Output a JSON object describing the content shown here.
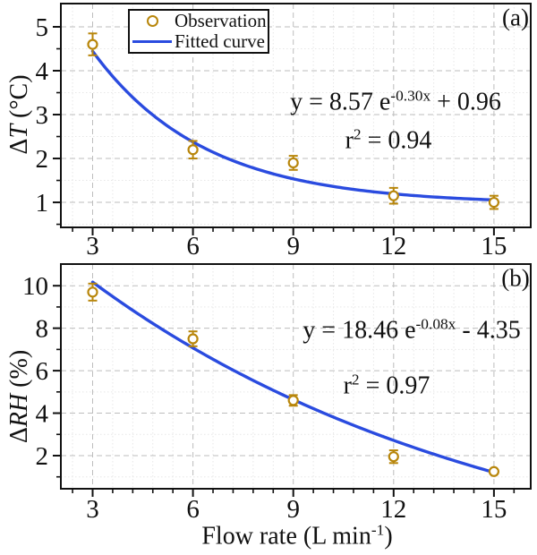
{
  "figure": {
    "xlabel": {
      "prefix": "Flow rate (L min",
      "sup": "-1",
      "suffix": ")"
    }
  },
  "colors": {
    "observation": "#b8860b",
    "fitted_curve": "#2a4bdf",
    "grid_major": "#bdbdbd",
    "grid_minor": "#e7e7e7",
    "axis": "#111111",
    "text": "#111111"
  },
  "chart_data": [
    {
      "type": "scatter",
      "panel_label": "(a)",
      "xlabel_shared": "Flow rate (L min-1)",
      "ylabel": {
        "prefix": "Δ",
        "italic": "T",
        "suffix": " (°C)"
      },
      "x_ticks": [
        3,
        6,
        9,
        12,
        15
      ],
      "y_ticks": [
        1,
        2,
        3,
        4,
        5
      ],
      "x_minor_step": 0.6,
      "y_minor_step": 0.5,
      "xlim": [
        2.05,
        16.1
      ],
      "ylim": [
        0.43,
        5.53
      ],
      "grid": "major-dashed plus minor-dotted",
      "series": [
        {
          "name": "Observation",
          "style": "open-circle",
          "x": [
            3,
            6,
            9,
            12,
            15
          ],
          "y": [
            4.6,
            2.2,
            1.9,
            1.15,
            1.0
          ],
          "yerr": [
            0.25,
            0.2,
            0.16,
            0.18,
            0.15
          ]
        },
        {
          "name": "Fitted curve",
          "style": "line",
          "fit_model": "y = A*exp(-k*x) + C",
          "A": 8.57,
          "k": 0.3,
          "C": 0.96,
          "x_range": [
            3,
            15
          ]
        }
      ],
      "equation": {
        "prefix": "y = 8.57 e",
        "sup": "-0.30x",
        "suffix": " + 0.96"
      },
      "r_squared": {
        "prefix": "r",
        "sup": "2",
        "suffix": " = 0.94"
      },
      "legend": {
        "position": "top-inside",
        "entries": [
          {
            "label": "Observation",
            "symbol": "open-circle"
          },
          {
            "label": "Fitted curve",
            "symbol": "line"
          }
        ]
      }
    },
    {
      "type": "scatter",
      "panel_label": "(b)",
      "ylabel": {
        "prefix": "Δ",
        "italic": "RH",
        "suffix": " (%)"
      },
      "x_ticks": [
        3,
        6,
        9,
        12,
        15
      ],
      "y_ticks": [
        2,
        4,
        6,
        8,
        10
      ],
      "x_minor_step": 0.6,
      "y_minor_step": 1,
      "xlim": [
        2.05,
        16.1
      ],
      "ylim": [
        0.44,
        11.02
      ],
      "grid": "major-dashed plus minor-dotted",
      "series": [
        {
          "name": "Observation",
          "style": "open-circle",
          "x": [
            3,
            6,
            9,
            12,
            15
          ],
          "y": [
            9.7,
            7.5,
            4.6,
            1.95,
            1.25
          ],
          "yerr": [
            0.4,
            0.35,
            0.25,
            0.3,
            0.1
          ]
        },
        {
          "name": "Fitted curve",
          "style": "line",
          "fit_model": "y = A*exp(-k*x) + C",
          "A": 18.46,
          "k": 0.08,
          "C": -4.35,
          "x_range": [
            3,
            15
          ]
        }
      ],
      "equation": {
        "prefix": "y = 18.46 e",
        "sup": "-0.08x",
        "suffix": " - 4.35"
      },
      "r_squared": {
        "prefix": "r",
        "sup": "2",
        "suffix": " = 0.97"
      }
    }
  ]
}
